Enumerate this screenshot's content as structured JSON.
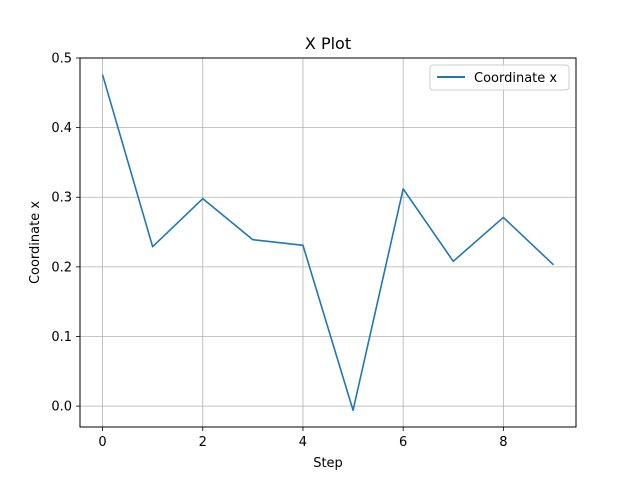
{
  "chart_data": {
    "type": "line",
    "title": "X Plot",
    "xlabel": "Step",
    "ylabel": "Coordinate x",
    "xlim": [
      -0.45,
      9.45
    ],
    "ylim": [
      -0.03,
      0.5
    ],
    "xticks": [
      0,
      2,
      4,
      6,
      8
    ],
    "yticks": [
      0.0,
      0.1,
      0.2,
      0.3,
      0.4,
      0.5
    ],
    "xtick_labels": [
      "0",
      "2",
      "4",
      "6",
      "8"
    ],
    "ytick_labels": [
      "0.0",
      "0.1",
      "0.2",
      "0.3",
      "0.4",
      "0.5"
    ],
    "grid": true,
    "legend_position": "top-right",
    "series": [
      {
        "name": "Coordinate x",
        "color": "#1f77b4",
        "x": [
          0,
          1,
          2,
          3,
          4,
          5,
          6,
          7,
          8,
          9
        ],
        "y": [
          0.476,
          0.229,
          0.298,
          0.239,
          0.231,
          -0.006,
          0.312,
          0.208,
          0.271,
          0.203
        ]
      }
    ]
  }
}
